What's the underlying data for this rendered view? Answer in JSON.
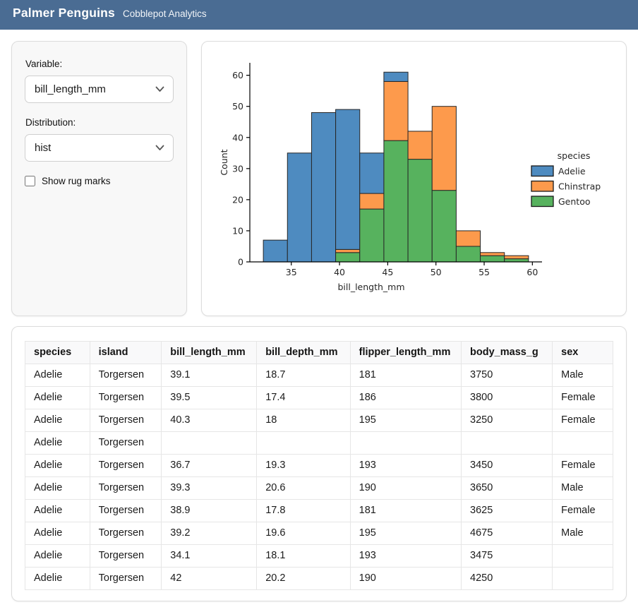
{
  "header": {
    "title": "Palmer Penguins",
    "subtitle": "Cobblepot Analytics",
    "bg_color": "#4a6c93"
  },
  "sidebar": {
    "variable_label": "Variable:",
    "variable_value": "bill_length_mm",
    "distribution_label": "Distribution:",
    "distribution_value": "hist",
    "rug_label": "Show rug marks",
    "rug_checked": false
  },
  "chart_data": {
    "type": "bar",
    "variant": "stacked-histogram",
    "title": "",
    "xlabel": "bill_length_mm",
    "ylabel": "Count",
    "bin_edges": [
      32.1,
      34.6,
      37.1,
      39.6,
      42.1,
      44.6,
      47.1,
      49.6,
      52.1,
      54.6,
      57.1,
      59.6
    ],
    "stack_order_bottom_to_top": [
      "Gentoo",
      "Chinstrap",
      "Adelie"
    ],
    "series": [
      {
        "name": "Adelie",
        "color": "#4e8bc0",
        "values": [
          7,
          35,
          48,
          45,
          13,
          3,
          0,
          0,
          0,
          0,
          0
        ]
      },
      {
        "name": "Chinstrap",
        "color": "#fd9a4c",
        "values": [
          0,
          0,
          0,
          1,
          5,
          19,
          9,
          27,
          5,
          1,
          1
        ]
      },
      {
        "name": "Gentoo",
        "color": "#57b25e",
        "values": [
          0,
          0,
          0,
          3,
          17,
          39,
          33,
          23,
          5,
          2,
          1
        ]
      }
    ],
    "bin_totals": [
      7,
      35,
      48,
      49,
      35,
      61,
      42,
      50,
      10,
      3,
      2
    ],
    "x_ticks": [
      35,
      40,
      45,
      50,
      55,
      60
    ],
    "y_ticks": [
      0,
      10,
      20,
      30,
      40,
      50,
      60
    ],
    "xlim": [
      30.7,
      61
    ],
    "ylim": [
      0,
      64
    ],
    "grid": false,
    "legend": {
      "title": "species",
      "position": "right",
      "entries": [
        "Adelie",
        "Chinstrap",
        "Gentoo"
      ]
    },
    "edge_color": "#262626",
    "text_color": "#262626"
  },
  "table": {
    "columns": [
      "species",
      "island",
      "bill_length_mm",
      "bill_depth_mm",
      "flipper_length_mm",
      "body_mass_g",
      "sex"
    ],
    "col_widths_pct": [
      11.0,
      12.2,
      16.2,
      15.9,
      18.9,
      15.5,
      10.3
    ],
    "rows": [
      [
        "Adelie",
        "Torgersen",
        "39.1",
        "18.7",
        "181",
        "3750",
        "Male"
      ],
      [
        "Adelie",
        "Torgersen",
        "39.5",
        "17.4",
        "186",
        "3800",
        "Female"
      ],
      [
        "Adelie",
        "Torgersen",
        "40.3",
        "18",
        "195",
        "3250",
        "Female"
      ],
      [
        "Adelie",
        "Torgersen",
        "",
        "",
        "",
        "",
        ""
      ],
      [
        "Adelie",
        "Torgersen",
        "36.7",
        "19.3",
        "193",
        "3450",
        "Female"
      ],
      [
        "Adelie",
        "Torgersen",
        "39.3",
        "20.6",
        "190",
        "3650",
        "Male"
      ],
      [
        "Adelie",
        "Torgersen",
        "38.9",
        "17.8",
        "181",
        "3625",
        "Female"
      ],
      [
        "Adelie",
        "Torgersen",
        "39.2",
        "19.6",
        "195",
        "4675",
        "Male"
      ],
      [
        "Adelie",
        "Torgersen",
        "34.1",
        "18.1",
        "193",
        "3475",
        ""
      ],
      [
        "Adelie",
        "Torgersen",
        "42",
        "20.2",
        "190",
        "4250",
        ""
      ]
    ]
  }
}
